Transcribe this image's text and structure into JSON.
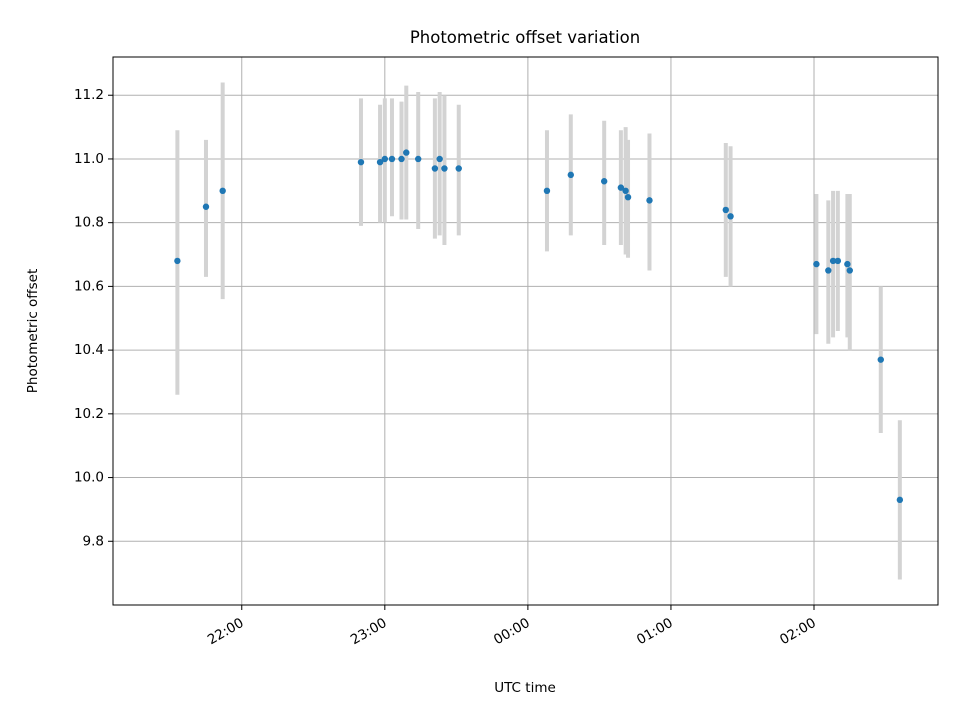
{
  "chart_data": {
    "type": "scatter",
    "title": "Photometric offset variation",
    "xlabel": "UTC time",
    "ylabel": "Photometric offset",
    "x_axis_type": "time",
    "xlim": [
      "21:06",
      "02:52"
    ],
    "ylim": [
      9.6,
      11.32
    ],
    "x_ticks": [
      {
        "value": "22:00",
        "label": "22:00"
      },
      {
        "value": "23:00",
        "label": "23:00"
      },
      {
        "value": "00:00",
        "label": "00:00"
      },
      {
        "value": "01:00",
        "label": "01:00"
      },
      {
        "value": "02:00",
        "label": "02:00"
      }
    ],
    "y_ticks": [
      {
        "value": 9.8,
        "label": "9.8"
      },
      {
        "value": 10.0,
        "label": "10.0"
      },
      {
        "value": 10.2,
        "label": "10.2"
      },
      {
        "value": 10.4,
        "label": "10.4"
      },
      {
        "value": 10.6,
        "label": "10.6"
      },
      {
        "value": 10.8,
        "label": "10.8"
      },
      {
        "value": 11.0,
        "label": "11.0"
      },
      {
        "value": 11.2,
        "label": "11.2"
      }
    ],
    "grid": true,
    "series": [
      {
        "marker_color": "#1f77b4",
        "errorbar_color": "#d3d3d3",
        "points": [
          {
            "x": "21:33",
            "y": 10.68,
            "ylow": 10.26,
            "yhigh": 11.09
          },
          {
            "x": "21:45",
            "y": 10.85,
            "ylow": 10.63,
            "yhigh": 11.06
          },
          {
            "x": "21:52",
            "y": 10.9,
            "ylow": 10.56,
            "yhigh": 11.24
          },
          {
            "x": "22:50",
            "y": 10.99,
            "ylow": 10.79,
            "yhigh": 11.19
          },
          {
            "x": "22:58",
            "y": 10.99,
            "ylow": 10.8,
            "yhigh": 11.17
          },
          {
            "x": "23:00",
            "y": 11.0,
            "ylow": 10.8,
            "yhigh": 11.19
          },
          {
            "x": "23:03",
            "y": 11.0,
            "ylow": 10.82,
            "yhigh": 11.19
          },
          {
            "x": "23:07",
            "y": 11.0,
            "ylow": 10.81,
            "yhigh": 11.18
          },
          {
            "x": "23:09",
            "y": 11.02,
            "ylow": 10.81,
            "yhigh": 11.23
          },
          {
            "x": "23:14",
            "y": 11.0,
            "ylow": 10.78,
            "yhigh": 11.21
          },
          {
            "x": "23:21",
            "y": 10.97,
            "ylow": 10.75,
            "yhigh": 11.19
          },
          {
            "x": "23:23",
            "y": 11.0,
            "ylow": 10.76,
            "yhigh": 11.21
          },
          {
            "x": "23:25",
            "y": 10.97,
            "ylow": 10.73,
            "yhigh": 11.2
          },
          {
            "x": "23:31",
            "y": 10.97,
            "ylow": 10.76,
            "yhigh": 11.17
          },
          {
            "x": "00:08",
            "y": 10.9,
            "ylow": 10.71,
            "yhigh": 11.09
          },
          {
            "x": "00:18",
            "y": 10.95,
            "ylow": 10.76,
            "yhigh": 11.14
          },
          {
            "x": "00:32",
            "y": 10.93,
            "ylow": 10.73,
            "yhigh": 11.12
          },
          {
            "x": "00:39",
            "y": 10.91,
            "ylow": 10.73,
            "yhigh": 11.09
          },
          {
            "x": "00:41",
            "y": 10.9,
            "ylow": 10.7,
            "yhigh": 11.1
          },
          {
            "x": "00:42",
            "y": 10.88,
            "ylow": 10.69,
            "yhigh": 11.06
          },
          {
            "x": "00:51",
            "y": 10.87,
            "ylow": 10.65,
            "yhigh": 11.08
          },
          {
            "x": "01:23",
            "y": 10.84,
            "ylow": 10.63,
            "yhigh": 11.05
          },
          {
            "x": "01:25",
            "y": 10.82,
            "ylow": 10.6,
            "yhigh": 11.04
          },
          {
            "x": "02:01",
            "y": 10.67,
            "ylow": 10.45,
            "yhigh": 10.89
          },
          {
            "x": "02:06",
            "y": 10.65,
            "ylow": 10.42,
            "yhigh": 10.87
          },
          {
            "x": "02:08",
            "y": 10.68,
            "ylow": 10.44,
            "yhigh": 10.9
          },
          {
            "x": "02:10",
            "y": 10.68,
            "ylow": 10.46,
            "yhigh": 10.9
          },
          {
            "x": "02:14",
            "y": 10.67,
            "ylow": 10.44,
            "yhigh": 10.89
          },
          {
            "x": "02:15",
            "y": 10.65,
            "ylow": 10.4,
            "yhigh": 10.89
          },
          {
            "x": "02:28",
            "y": 10.37,
            "ylow": 10.14,
            "yhigh": 10.6
          },
          {
            "x": "02:36",
            "y": 9.93,
            "ylow": 9.68,
            "yhigh": 10.18
          }
        ]
      }
    ]
  }
}
